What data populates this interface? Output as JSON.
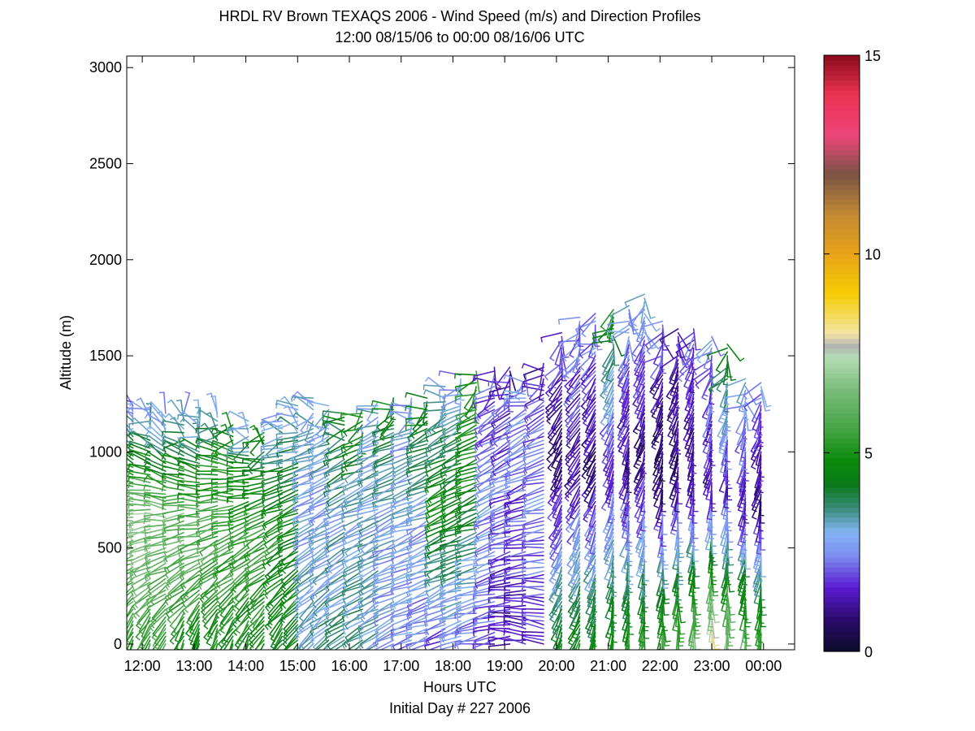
{
  "chart_data": {
    "type": "wind_profile_barbs",
    "title_line1": "HRDL RV Brown TEXAQS 2006 - Wind Speed (m/s) and Direction Profiles",
    "title_line2": "12:00 08/15/06 to 00:00 08/16/06  UTC",
    "xlabel": "Hours UTC",
    "xlabel_sub": "Initial Day # 227  2006",
    "ylabel": "Altitude (m)",
    "xlim_hours": [
      11.7,
      24.6
    ],
    "ylim_m": [
      -30,
      3060
    ],
    "x_ticks": [
      {
        "hour": 12,
        "label": "12:00"
      },
      {
        "hour": 13,
        "label": "13:00"
      },
      {
        "hour": 14,
        "label": "14:00"
      },
      {
        "hour": 15,
        "label": "15:00"
      },
      {
        "hour": 16,
        "label": "16:00"
      },
      {
        "hour": 17,
        "label": "17:00"
      },
      {
        "hour": 18,
        "label": "18:00"
      },
      {
        "hour": 19,
        "label": "19:00"
      },
      {
        "hour": 20,
        "label": "20:00"
      },
      {
        "hour": 21,
        "label": "21:00"
      },
      {
        "hour": 22,
        "label": "22:00"
      },
      {
        "hour": 23,
        "label": "23:00"
      },
      {
        "hour": 24,
        "label": "00:00"
      }
    ],
    "y_ticks": [
      {
        "value": 0,
        "label": "0"
      },
      {
        "value": 500,
        "label": "500"
      },
      {
        "value": 1000,
        "label": "1000"
      },
      {
        "value": 1500,
        "label": "1500"
      },
      {
        "value": 2000,
        "label": "2000"
      },
      {
        "value": 2500,
        "label": "2500"
      },
      {
        "value": 3000,
        "label": "3000"
      }
    ],
    "grid": false,
    "colorbar": {
      "label_ticks": [
        {
          "value": 0,
          "label": "0"
        },
        {
          "value": 5,
          "label": "5"
        },
        {
          "value": 10,
          "label": "10"
        },
        {
          "value": 15,
          "label": "15"
        }
      ],
      "range": [
        0,
        15
      ],
      "color_stops": [
        {
          "value": 0.0,
          "color": "#0a0a2a"
        },
        {
          "value": 0.8,
          "color": "#2a0a6a"
        },
        {
          "value": 1.6,
          "color": "#5a1ad2"
        },
        {
          "value": 2.4,
          "color": "#7c8cf0"
        },
        {
          "value": 3.0,
          "color": "#84b4f4"
        },
        {
          "value": 3.6,
          "color": "#3a8c7a"
        },
        {
          "value": 4.2,
          "color": "#0a7a1a"
        },
        {
          "value": 4.8,
          "color": "#0a8a0a"
        },
        {
          "value": 5.6,
          "color": "#44a444"
        },
        {
          "value": 6.6,
          "color": "#7abc7a"
        },
        {
          "value": 7.4,
          "color": "#b4dcb4"
        },
        {
          "value": 7.7,
          "color": "#b4b4b4"
        },
        {
          "value": 8.0,
          "color": "#f4e4a4"
        },
        {
          "value": 9.0,
          "color": "#f4cc04"
        },
        {
          "value": 10.0,
          "color": "#e8a418"
        },
        {
          "value": 11.0,
          "color": "#c48a34"
        },
        {
          "value": 12.0,
          "color": "#7a5444"
        },
        {
          "value": 13.0,
          "color": "#ec447a"
        },
        {
          "value": 14.0,
          "color": "#ec3454"
        },
        {
          "value": 15.0,
          "color": "#8a0a1a"
        }
      ]
    },
    "profiles": [
      {
        "hour": 11.82,
        "top": 1260,
        "speed_low": 5.2,
        "speed_mid": 6.6,
        "speed_high": 2.4,
        "dir_low": 200,
        "dir_high": 330
      },
      {
        "hour": 12.15,
        "top": 1220,
        "speed_low": 5.5,
        "speed_mid": 6.8,
        "speed_high": 2.6,
        "dir_low": 200,
        "dir_high": 320
      },
      {
        "hour": 12.45,
        "top": 1210,
        "speed_low": 5.4,
        "speed_mid": 6.5,
        "speed_high": 2.3,
        "dir_low": 205,
        "dir_high": 330
      },
      {
        "hour": 12.8,
        "top": 1200,
        "speed_low": 5.0,
        "speed_mid": 6.4,
        "speed_high": 2.8,
        "dir_low": 205,
        "dir_high": 310
      },
      {
        "hour": 13.1,
        "top": 1180,
        "speed_low": 4.9,
        "speed_mid": 6.1,
        "speed_high": 3.0,
        "dir_low": 200,
        "dir_high": 320
      },
      {
        "hour": 13.45,
        "top": 1200,
        "speed_low": 4.7,
        "speed_mid": 6.0,
        "speed_high": 3.2,
        "dir_low": 200,
        "dir_high": 300
      },
      {
        "hour": 13.75,
        "top": 1150,
        "speed_low": 4.6,
        "speed_mid": 5.8,
        "speed_high": 4.4,
        "dir_low": 205,
        "dir_high": 300
      },
      {
        "hour": 14.05,
        "top": 1170,
        "speed_low": 4.6,
        "speed_mid": 5.6,
        "speed_high": 2.8,
        "dir_low": 205,
        "dir_high": 290
      },
      {
        "hour": 14.35,
        "top": 1100,
        "speed_low": 4.8,
        "speed_mid": 5.4,
        "speed_high": 4.2,
        "dir_low": 210,
        "dir_high": 280
      },
      {
        "hour": 14.7,
        "top": 1200,
        "speed_low": 4.5,
        "speed_mid": 5.0,
        "speed_high": 2.8,
        "dir_low": 215,
        "dir_high": 270
      },
      {
        "hour": 15.0,
        "top": 1250,
        "speed_low": 4.3,
        "speed_mid": 4.8,
        "speed_high": 2.8,
        "dir_low": 220,
        "dir_high": 270
      },
      {
        "hour": 15.3,
        "top": 1290,
        "speed_low": 3.2,
        "speed_mid": 2.9,
        "speed_high": 3.0,
        "dir_low": 225,
        "dir_high": 260
      },
      {
        "hour": 15.6,
        "top": 1250,
        "speed_low": 3.4,
        "speed_mid": 2.8,
        "speed_high": 3.2,
        "dir_low": 230,
        "dir_high": 250
      },
      {
        "hour": 15.9,
        "top": 1200,
        "speed_low": 3.6,
        "speed_mid": 3.0,
        "speed_high": 4.5,
        "dir_low": 235,
        "dir_high": 250
      },
      {
        "hour": 16.25,
        "top": 1230,
        "speed_low": 3.6,
        "speed_mid": 2.9,
        "speed_high": 5.0,
        "dir_low": 240,
        "dir_high": 250
      },
      {
        "hour": 16.55,
        "top": 1260,
        "speed_low": 3.2,
        "speed_mid": 3.0,
        "speed_high": 3.0,
        "dir_low": 240,
        "dir_high": 250
      },
      {
        "hour": 16.85,
        "top": 1290,
        "speed_low": 2.6,
        "speed_mid": 2.9,
        "speed_high": 4.6,
        "dir_low": 245,
        "dir_high": 250
      },
      {
        "hour": 17.2,
        "top": 1280,
        "speed_low": 2.4,
        "speed_mid": 2.9,
        "speed_high": 2.8,
        "dir_low": 250,
        "dir_high": 250
      },
      {
        "hour": 17.5,
        "top": 1290,
        "speed_low": 2.4,
        "speed_mid": 2.9,
        "speed_high": 4.8,
        "dir_low": 250,
        "dir_high": 245
      },
      {
        "hour": 17.85,
        "top": 1350,
        "speed_low": 2.0,
        "speed_mid": 4.8,
        "speed_high": 2.8,
        "dir_low": 250,
        "dir_high": 240
      },
      {
        "hour": 18.15,
        "top": 1410,
        "speed_low": 2.2,
        "speed_mid": 4.8,
        "speed_high": 2.6,
        "dir_low": 255,
        "dir_high": 240
      },
      {
        "hour": 18.45,
        "top": 1430,
        "speed_low": 2.0,
        "speed_mid": 4.6,
        "speed_high": 5.2,
        "dir_low": 260,
        "dir_high": 240
      },
      {
        "hour": 18.8,
        "top": 1450,
        "speed_low": 1.8,
        "speed_mid": 2.8,
        "speed_high": 1.8,
        "dir_low": 260,
        "dir_high": 230
      },
      {
        "hour": 19.1,
        "top": 1440,
        "speed_low": 1.2,
        "speed_mid": 2.2,
        "speed_high": 1.4,
        "dir_low": 270,
        "dir_high": 230
      },
      {
        "hour": 19.4,
        "top": 1400,
        "speed_low": 1.4,
        "speed_mid": 2.0,
        "speed_high": 2.6,
        "dir_low": 280,
        "dir_high": 230
      },
      {
        "hour": 19.75,
        "top": 1460,
        "speed_low": 1.8,
        "speed_mid": 2.4,
        "speed_high": 1.6,
        "dir_low": 280,
        "dir_high": 230
      },
      {
        "hour": 20.1,
        "top": 1620,
        "speed_low": 4.6,
        "speed_mid": 1.0,
        "speed_high": 2.0,
        "dir_low": 200,
        "dir_high": 220
      },
      {
        "hour": 20.45,
        "top": 1700,
        "speed_low": 4.8,
        "speed_mid": 1.2,
        "speed_high": 2.4,
        "dir_low": 200,
        "dir_high": 225
      },
      {
        "hour": 20.75,
        "top": 1720,
        "speed_low": 5.0,
        "speed_mid": 0.8,
        "speed_high": 2.6,
        "dir_low": 195,
        "dir_high": 220
      },
      {
        "hour": 21.1,
        "top": 1750,
        "speed_low": 5.2,
        "speed_mid": 1.4,
        "speed_high": 4.8,
        "dir_low": 190,
        "dir_high": 215
      },
      {
        "hour": 21.4,
        "top": 1760,
        "speed_low": 5.4,
        "speed_mid": 1.0,
        "speed_high": 2.8,
        "dir_low": 185,
        "dir_high": 210
      },
      {
        "hour": 21.7,
        "top": 1830,
        "speed_low": 5.6,
        "speed_mid": 0.8,
        "speed_high": 3.0,
        "dir_low": 185,
        "dir_high": 210
      },
      {
        "hour": 22.05,
        "top": 1690,
        "speed_low": 5.8,
        "speed_mid": 0.6,
        "speed_high": 2.0,
        "dir_low": 180,
        "dir_high": 210
      },
      {
        "hour": 22.35,
        "top": 1640,
        "speed_low": 6.4,
        "speed_mid": 0.8,
        "speed_high": 1.6,
        "dir_low": 180,
        "dir_high": 205
      },
      {
        "hour": 22.65,
        "top": 1640,
        "speed_low": 7.0,
        "speed_mid": 1.0,
        "speed_high": 2.0,
        "dir_low": 180,
        "dir_high": 205
      },
      {
        "hour": 23.0,
        "top": 1600,
        "speed_low": 8.6,
        "speed_mid": 1.2,
        "speed_high": 2.6,
        "dir_low": 180,
        "dir_high": 200
      },
      {
        "hour": 23.3,
        "top": 1560,
        "speed_low": 7.2,
        "speed_mid": 1.4,
        "speed_high": 4.4,
        "dir_low": 180,
        "dir_high": 200
      },
      {
        "hour": 23.65,
        "top": 1380,
        "speed_low": 6.6,
        "speed_mid": 1.6,
        "speed_high": 3.0,
        "dir_low": 185,
        "dir_high": 200
      },
      {
        "hour": 23.95,
        "top": 1370,
        "speed_low": 6.0,
        "speed_mid": 1.0,
        "speed_high": 2.6,
        "dir_low": 185,
        "dir_high": 200
      }
    ]
  }
}
